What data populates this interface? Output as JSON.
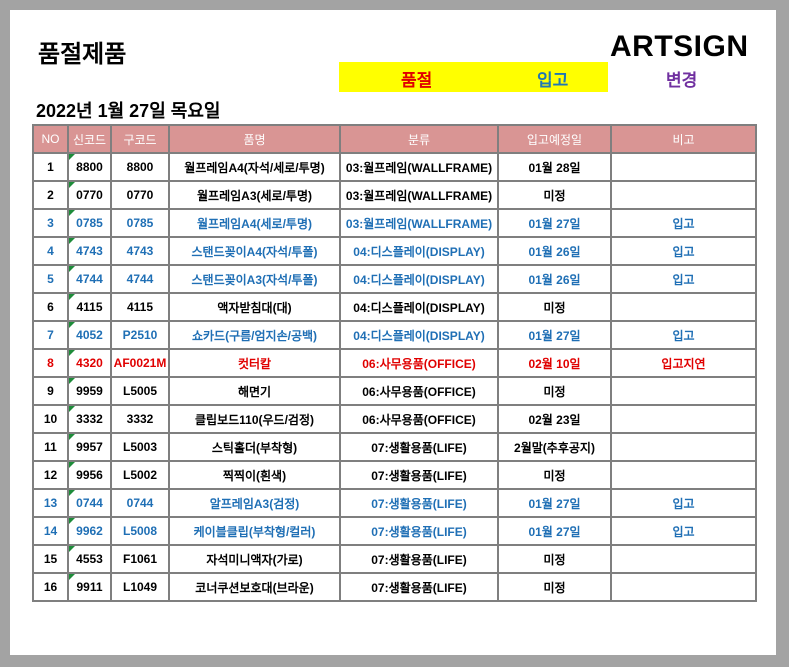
{
  "title": "품절제품",
  "logo": "ARTSIGN",
  "legend": {
    "out_of_stock": "품절",
    "restocked": "입고",
    "changed": "변경"
  },
  "colors": {
    "default": "#000000",
    "restocked": "#1f6fb5",
    "delayed": "#e00000",
    "header_bg": "#d99594",
    "legend_bg": "#ffff00",
    "changed": "#7030a0"
  },
  "date": "2022년 1월 27일 목요일",
  "table": {
    "headers": [
      "NO",
      "신코드",
      "구코드",
      "품명",
      "분류",
      "입고예정일",
      "비고"
    ],
    "rows": [
      {
        "no": "1",
        "new_code": "8800",
        "old_code": "8800",
        "name": "월프레임A4(자석/세로/투명)",
        "category": "03:월프레임(WALLFRAME)",
        "eta": "01월 28일",
        "note": "",
        "color": "#000000"
      },
      {
        "no": "2",
        "new_code": "0770",
        "old_code": "0770",
        "name": "월프레임A3(세로/투명)",
        "category": "03:월프레임(WALLFRAME)",
        "eta": "미정",
        "note": "",
        "color": "#000000"
      },
      {
        "no": "3",
        "new_code": "0785",
        "old_code": "0785",
        "name": "월프레임A4(세로/투명)",
        "category": "03:월프레임(WALLFRAME)",
        "eta": "01월 27일",
        "note": "입고",
        "color": "#1f6fb5"
      },
      {
        "no": "4",
        "new_code": "4743",
        "old_code": "4743",
        "name": "스탠드꽂이A4(자석/투폴)",
        "category": "04:디스플레이(DISPLAY)",
        "eta": "01월 26일",
        "note": "입고",
        "color": "#1f6fb5"
      },
      {
        "no": "5",
        "new_code": "4744",
        "old_code": "4744",
        "name": "스탠드꽂이A3(자석/투폴)",
        "category": "04:디스플레이(DISPLAY)",
        "eta": "01월 26일",
        "note": "입고",
        "color": "#1f6fb5"
      },
      {
        "no": "6",
        "new_code": "4115",
        "old_code": "4115",
        "name": "액자받침대(대)",
        "category": "04:디스플레이(DISPLAY)",
        "eta": "미정",
        "note": "",
        "color": "#000000"
      },
      {
        "no": "7",
        "new_code": "4052",
        "old_code": "P2510",
        "name": "쇼카드(구름/엄지손/공백)",
        "category": "04:디스플레이(DISPLAY)",
        "eta": "01월 27일",
        "note": "입고",
        "color": "#1f6fb5"
      },
      {
        "no": "8",
        "new_code": "4320",
        "old_code": "AF0021M",
        "name": "컷터칼",
        "category": "06:사무용품(OFFICE)",
        "eta": "02월 10일",
        "note": "입고지연",
        "color": "#e00000"
      },
      {
        "no": "9",
        "new_code": "9959",
        "old_code": "L5005",
        "name": "해면기",
        "category": "06:사무용품(OFFICE)",
        "eta": "미정",
        "note": "",
        "color": "#000000"
      },
      {
        "no": "10",
        "new_code": "3332",
        "old_code": "3332",
        "name": "클립보드110(우드/검정)",
        "category": "06:사무용품(OFFICE)",
        "eta": "02월 23일",
        "note": "",
        "color": "#000000"
      },
      {
        "no": "11",
        "new_code": "9957",
        "old_code": "L5003",
        "name": "스틱홀더(부착형)",
        "category": "07:생활용품(LIFE)",
        "eta": "2월말(추후공지)",
        "note": "",
        "color": "#000000"
      },
      {
        "no": "12",
        "new_code": "9956",
        "old_code": "L5002",
        "name": "찍찍이(흰색)",
        "category": "07:생활용품(LIFE)",
        "eta": "미정",
        "note": "",
        "color": "#000000"
      },
      {
        "no": "13",
        "new_code": "0744",
        "old_code": "0744",
        "name": "알프레임A3(검정)",
        "category": "07:생활용품(LIFE)",
        "eta": "01월 27일",
        "note": "입고",
        "color": "#1f6fb5"
      },
      {
        "no": "14",
        "new_code": "9962",
        "old_code": "L5008",
        "name": "케이블클립(부착형/컬러)",
        "category": "07:생활용품(LIFE)",
        "eta": "01월 27일",
        "note": "입고",
        "color": "#1f6fb5"
      },
      {
        "no": "15",
        "new_code": "4553",
        "old_code": "F1061",
        "name": "자석미니액자(가로)",
        "category": "07:생활용품(LIFE)",
        "eta": "미정",
        "note": "",
        "color": "#000000"
      },
      {
        "no": "16",
        "new_code": "9911",
        "old_code": "L1049",
        "name": "코너쿠션보호대(브라운)",
        "category": "07:생활용품(LIFE)",
        "eta": "미정",
        "note": "",
        "color": "#000000"
      }
    ]
  }
}
